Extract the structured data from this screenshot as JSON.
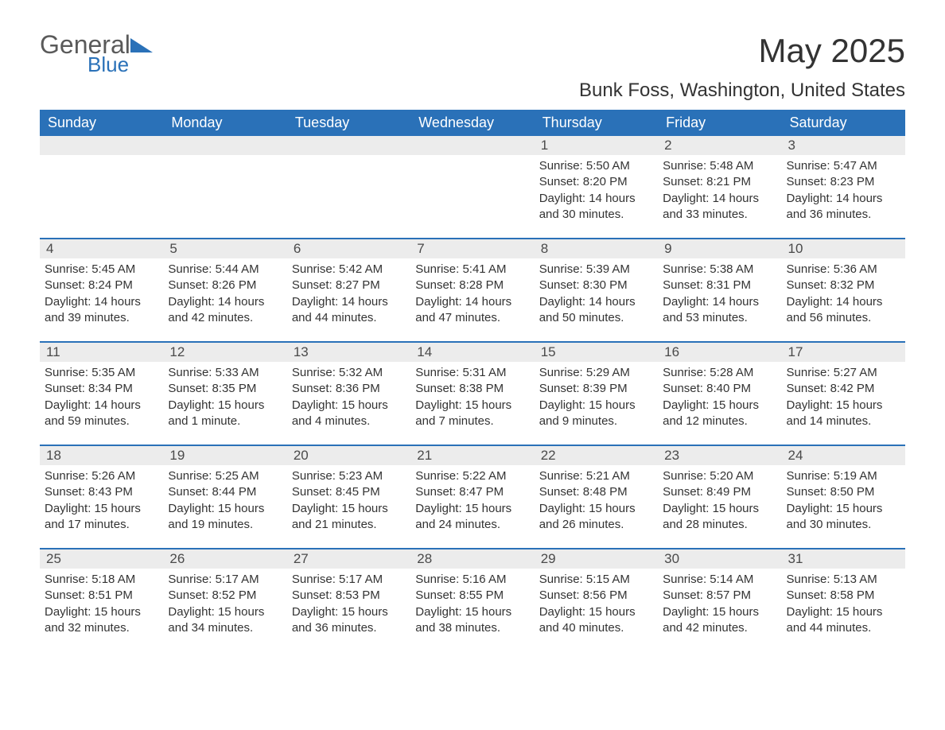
{
  "brand": {
    "part1": "General",
    "part2": "Blue"
  },
  "title": "May 2025",
  "location": "Bunk Foss, Washington, United States",
  "colors": {
    "header_bg": "#2a71b8",
    "header_text": "#ffffff",
    "daynum_bg": "#ececec",
    "body_text": "#333333",
    "page_bg": "#ffffff",
    "divider": "#2a71b8"
  },
  "typography": {
    "title_fontsize": 42,
    "location_fontsize": 24,
    "dow_fontsize": 18,
    "daynum_fontsize": 17,
    "body_fontsize": 15
  },
  "days_of_week": [
    "Sunday",
    "Monday",
    "Tuesday",
    "Wednesday",
    "Thursday",
    "Friday",
    "Saturday"
  ],
  "weeks": [
    [
      null,
      null,
      null,
      null,
      {
        "n": "1",
        "sunrise": "5:50 AM",
        "sunset": "8:20 PM",
        "daylight": "14 hours and 30 minutes."
      },
      {
        "n": "2",
        "sunrise": "5:48 AM",
        "sunset": "8:21 PM",
        "daylight": "14 hours and 33 minutes."
      },
      {
        "n": "3",
        "sunrise": "5:47 AM",
        "sunset": "8:23 PM",
        "daylight": "14 hours and 36 minutes."
      }
    ],
    [
      {
        "n": "4",
        "sunrise": "5:45 AM",
        "sunset": "8:24 PM",
        "daylight": "14 hours and 39 minutes."
      },
      {
        "n": "5",
        "sunrise": "5:44 AM",
        "sunset": "8:26 PM",
        "daylight": "14 hours and 42 minutes."
      },
      {
        "n": "6",
        "sunrise": "5:42 AM",
        "sunset": "8:27 PM",
        "daylight": "14 hours and 44 minutes."
      },
      {
        "n": "7",
        "sunrise": "5:41 AM",
        "sunset": "8:28 PM",
        "daylight": "14 hours and 47 minutes."
      },
      {
        "n": "8",
        "sunrise": "5:39 AM",
        "sunset": "8:30 PM",
        "daylight": "14 hours and 50 minutes."
      },
      {
        "n": "9",
        "sunrise": "5:38 AM",
        "sunset": "8:31 PM",
        "daylight": "14 hours and 53 minutes."
      },
      {
        "n": "10",
        "sunrise": "5:36 AM",
        "sunset": "8:32 PM",
        "daylight": "14 hours and 56 minutes."
      }
    ],
    [
      {
        "n": "11",
        "sunrise": "5:35 AM",
        "sunset": "8:34 PM",
        "daylight": "14 hours and 59 minutes."
      },
      {
        "n": "12",
        "sunrise": "5:33 AM",
        "sunset": "8:35 PM",
        "daylight": "15 hours and 1 minute."
      },
      {
        "n": "13",
        "sunrise": "5:32 AM",
        "sunset": "8:36 PM",
        "daylight": "15 hours and 4 minutes."
      },
      {
        "n": "14",
        "sunrise": "5:31 AM",
        "sunset": "8:38 PM",
        "daylight": "15 hours and 7 minutes."
      },
      {
        "n": "15",
        "sunrise": "5:29 AM",
        "sunset": "8:39 PM",
        "daylight": "15 hours and 9 minutes."
      },
      {
        "n": "16",
        "sunrise": "5:28 AM",
        "sunset": "8:40 PM",
        "daylight": "15 hours and 12 minutes."
      },
      {
        "n": "17",
        "sunrise": "5:27 AM",
        "sunset": "8:42 PM",
        "daylight": "15 hours and 14 minutes."
      }
    ],
    [
      {
        "n": "18",
        "sunrise": "5:26 AM",
        "sunset": "8:43 PM",
        "daylight": "15 hours and 17 minutes."
      },
      {
        "n": "19",
        "sunrise": "5:25 AM",
        "sunset": "8:44 PM",
        "daylight": "15 hours and 19 minutes."
      },
      {
        "n": "20",
        "sunrise": "5:23 AM",
        "sunset": "8:45 PM",
        "daylight": "15 hours and 21 minutes."
      },
      {
        "n": "21",
        "sunrise": "5:22 AM",
        "sunset": "8:47 PM",
        "daylight": "15 hours and 24 minutes."
      },
      {
        "n": "22",
        "sunrise": "5:21 AM",
        "sunset": "8:48 PM",
        "daylight": "15 hours and 26 minutes."
      },
      {
        "n": "23",
        "sunrise": "5:20 AM",
        "sunset": "8:49 PM",
        "daylight": "15 hours and 28 minutes."
      },
      {
        "n": "24",
        "sunrise": "5:19 AM",
        "sunset": "8:50 PM",
        "daylight": "15 hours and 30 minutes."
      }
    ],
    [
      {
        "n": "25",
        "sunrise": "5:18 AM",
        "sunset": "8:51 PM",
        "daylight": "15 hours and 32 minutes."
      },
      {
        "n": "26",
        "sunrise": "5:17 AM",
        "sunset": "8:52 PM",
        "daylight": "15 hours and 34 minutes."
      },
      {
        "n": "27",
        "sunrise": "5:17 AM",
        "sunset": "8:53 PM",
        "daylight": "15 hours and 36 minutes."
      },
      {
        "n": "28",
        "sunrise": "5:16 AM",
        "sunset": "8:55 PM",
        "daylight": "15 hours and 38 minutes."
      },
      {
        "n": "29",
        "sunrise": "5:15 AM",
        "sunset": "8:56 PM",
        "daylight": "15 hours and 40 minutes."
      },
      {
        "n": "30",
        "sunrise": "5:14 AM",
        "sunset": "8:57 PM",
        "daylight": "15 hours and 42 minutes."
      },
      {
        "n": "31",
        "sunrise": "5:13 AM",
        "sunset": "8:58 PM",
        "daylight": "15 hours and 44 minutes."
      }
    ]
  ],
  "labels": {
    "sunrise": "Sunrise: ",
    "sunset": "Sunset: ",
    "daylight": "Daylight: "
  }
}
